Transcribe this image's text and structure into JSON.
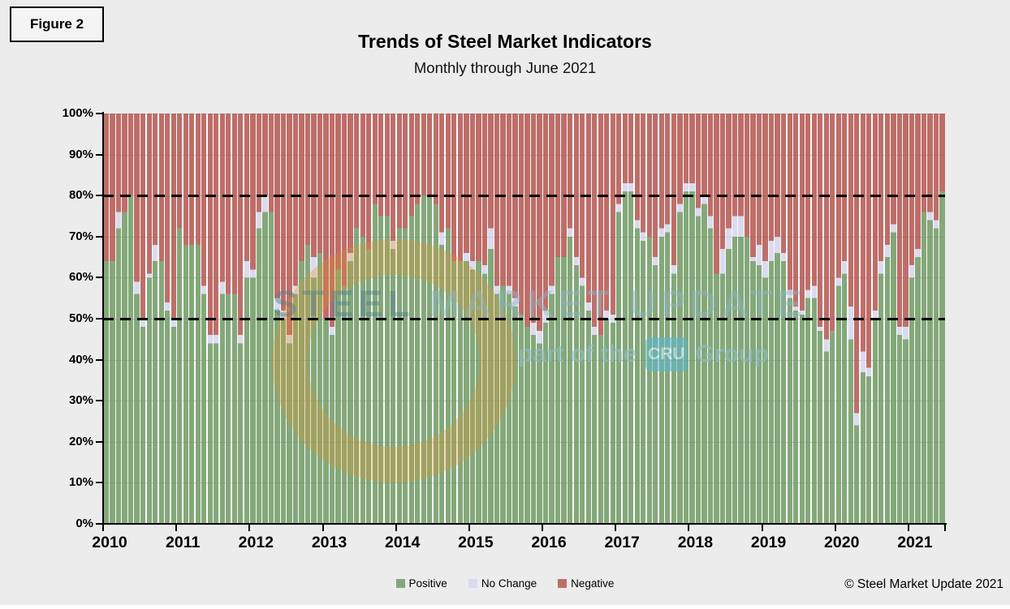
{
  "figure_label": "Figure 2",
  "title": "Trends of Steel Market Indicators",
  "subtitle": "Monthly through June 2021",
  "copyright": "© Steel Market Update 2021",
  "colors": {
    "positive": "#84A87A",
    "no_change": "#DBDBEF",
    "negative": "#BE6E69",
    "background": "#ECECEC",
    "reference_line": "#000000",
    "watermark_orange": "#D9952F",
    "watermark_teal": "#5FB6C9"
  },
  "legend": [
    {
      "label": "Positive",
      "color": "#84A87A"
    },
    {
      "label": "No Change",
      "color": "#DBDBEF"
    },
    {
      "label": "Negative",
      "color": "#BE6E69"
    }
  ],
  "watermark": {
    "word1": "STEEL ",
    "word2": "MARKET UPDATE",
    "tagline_left": "part of the",
    "cru": "CRU",
    "tagline_right": "Group"
  },
  "y_axis": {
    "tick_labels": [
      "0%",
      "10%",
      "20%",
      "30%",
      "40%",
      "50%",
      "60%",
      "70%",
      "80%",
      "90%",
      "100%"
    ],
    "reference_lines_pct": [
      50,
      80
    ]
  },
  "x_axis": {
    "year_labels": [
      "2010",
      "2011",
      "2012",
      "2013",
      "2014",
      "2015",
      "2016",
      "2017",
      "2018",
      "2019",
      "2020",
      "2021"
    ]
  },
  "chart_data": {
    "type": "bar",
    "subtype": "stacked-100-percent-monthly",
    "title": "Trends of Steel Market Indicators",
    "subtitle": "Monthly through June 2021",
    "xlabel": "",
    "ylabel": "",
    "ylim": [
      0,
      100
    ],
    "grid": true,
    "legend_position": "bottom",
    "reference_lines_pct": [
      50,
      80
    ],
    "start_month": "2010-01",
    "end_month": "2021-06",
    "series_names": [
      "Positive",
      "No Change",
      "Negative"
    ],
    "note": "Values are percent of responses; Positive + No Change + Negative = 100 for every month.",
    "years": [
      {
        "year": 2010,
        "positive": [
          64,
          64,
          72,
          76,
          80,
          56,
          48,
          60,
          64,
          64,
          52,
          48
        ],
        "no_change": [
          0,
          0,
          4,
          0,
          0,
          3,
          2,
          1,
          4,
          0,
          2,
          2
        ],
        "negative": [
          36,
          36,
          24,
          24,
          20,
          41,
          50,
          39,
          32,
          36,
          46,
          50
        ]
      },
      {
        "year": 2011,
        "positive": [
          72,
          68,
          68,
          68,
          56,
          44,
          44,
          56,
          56,
          56,
          44,
          60
        ],
        "no_change": [
          0,
          0,
          0,
          0,
          2,
          2,
          2,
          3,
          0,
          0,
          2,
          4
        ],
        "negative": [
          28,
          32,
          32,
          32,
          42,
          54,
          54,
          41,
          44,
          44,
          54,
          36
        ]
      },
      {
        "year": 2012,
        "positive": [
          60,
          72,
          76,
          76,
          52,
          50,
          44,
          56,
          64,
          68,
          60,
          66
        ],
        "no_change": [
          2,
          4,
          4,
          0,
          3,
          2,
          2,
          2,
          0,
          0,
          5,
          0
        ],
        "negative": [
          38,
          24,
          20,
          24,
          45,
          48,
          54,
          42,
          36,
          32,
          35,
          34
        ]
      },
      {
        "year": 2013,
        "positive": [
          50,
          46,
          62,
          58,
          64,
          72,
          70,
          67,
          78,
          75,
          75,
          67
        ],
        "no_change": [
          0,
          2,
          0,
          0,
          2,
          0,
          0,
          0,
          0,
          0,
          0,
          2
        ],
        "negative": [
          50,
          52,
          38,
          42,
          34,
          28,
          30,
          33,
          22,
          25,
          25,
          31
        ]
      },
      {
        "year": 2014,
        "positive": [
          72,
          72,
          75,
          78,
          80,
          80,
          78,
          68,
          72,
          64,
          64,
          64
        ],
        "no_change": [
          0,
          0,
          0,
          0,
          0,
          0,
          0,
          3,
          0,
          0,
          0,
          2
        ],
        "negative": [
          28,
          28,
          25,
          22,
          20,
          20,
          22,
          29,
          28,
          36,
          36,
          34
        ]
      },
      {
        "year": 2015,
        "positive": [
          62,
          64,
          61,
          67,
          56,
          58,
          56,
          53,
          51,
          48,
          46,
          44
        ],
        "no_change": [
          2,
          0,
          2,
          5,
          2,
          0,
          2,
          2,
          0,
          0,
          3,
          3
        ],
        "negative": [
          36,
          36,
          37,
          28,
          42,
          42,
          42,
          45,
          49,
          52,
          51,
          53
        ]
      },
      {
        "year": 2016,
        "positive": [
          49,
          56,
          65,
          65,
          70,
          63,
          58,
          52,
          46,
          46,
          50,
          49
        ],
        "no_change": [
          3,
          2,
          0,
          0,
          2,
          2,
          2,
          2,
          2,
          0,
          2,
          2
        ],
        "negative": [
          48,
          42,
          35,
          35,
          28,
          35,
          40,
          46,
          52,
          54,
          48,
          49
        ]
      },
      {
        "year": 2017,
        "positive": [
          76,
          81,
          81,
          72,
          69,
          70,
          63,
          70,
          71,
          61,
          76,
          81
        ],
        "no_change": [
          2,
          2,
          2,
          2,
          2,
          0,
          2,
          2,
          2,
          2,
          2,
          2
        ],
        "negative": [
          22,
          17,
          17,
          26,
          29,
          30,
          35,
          28,
          27,
          37,
          22,
          17
        ]
      },
      {
        "year": 2018,
        "positive": [
          81,
          75,
          78,
          72,
          61,
          61,
          67,
          70,
          70,
          70,
          64,
          63
        ],
        "no_change": [
          2,
          2,
          2,
          3,
          0,
          6,
          5,
          5,
          5,
          0,
          1,
          5
        ],
        "negative": [
          17,
          23,
          20,
          25,
          39,
          33,
          28,
          25,
          25,
          30,
          35,
          32
        ]
      },
      {
        "year": 2019,
        "positive": [
          60,
          64,
          66,
          64,
          55,
          52,
          51,
          55,
          55,
          47,
          42,
          47
        ],
        "no_change": [
          4,
          5,
          4,
          2,
          2,
          1,
          1,
          2,
          3,
          1,
          3,
          0
        ],
        "negative": [
          36,
          31,
          30,
          34,
          43,
          47,
          48,
          43,
          42,
          52,
          55,
          53
        ]
      },
      {
        "year": 2020,
        "positive": [
          58,
          61,
          45,
          24,
          37,
          36,
          50,
          61,
          65,
          71,
          46,
          45
        ],
        "no_change": [
          2,
          3,
          8,
          3,
          5,
          2,
          2,
          3,
          3,
          2,
          2,
          3
        ],
        "negative": [
          40,
          36,
          47,
          73,
          58,
          62,
          48,
          36,
          32,
          27,
          52,
          52
        ]
      },
      {
        "year": 2021,
        "positive": [
          60,
          65,
          76,
          74,
          72,
          81
        ],
        "no_change": [
          3,
          2,
          0,
          2,
          2,
          0
        ],
        "negative": [
          37,
          33,
          24,
          24,
          26,
          19
        ]
      }
    ]
  }
}
